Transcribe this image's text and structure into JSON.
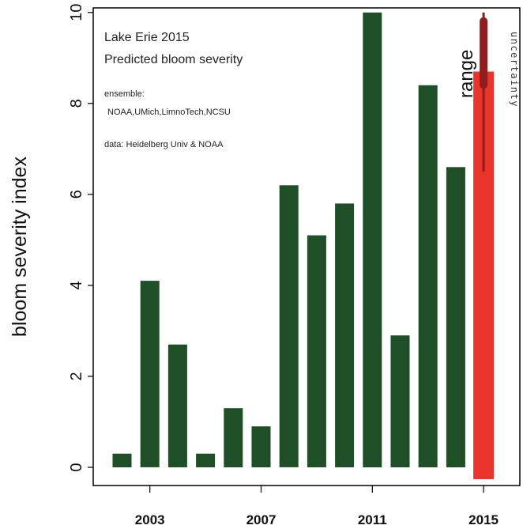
{
  "chart_data": {
    "type": "bar",
    "x": [
      2002,
      2003,
      2004,
      2005,
      2006,
      2007,
      2008,
      2009,
      2010,
      2011,
      2012,
      2013,
      2014,
      2015
    ],
    "values": [
      0.3,
      4.1,
      2.7,
      0.3,
      1.3,
      0.9,
      6.2,
      5.1,
      5.8,
      10.0,
      2.9,
      8.4,
      6.6,
      8.7
    ],
    "ylabel": "bloom severity index",
    "xlabel": "",
    "ylim": [
      -0.4,
      10.1
    ],
    "yticks": [
      0,
      2,
      4,
      6,
      8,
      10
    ],
    "ytick_labels": [
      "0",
      "2",
      "4",
      "6",
      "8",
      "10"
    ],
    "xticks": [
      2003,
      2007,
      2011,
      2015
    ],
    "xtick_labels": [
      "2003",
      "2007",
      "2011",
      "2015"
    ],
    "highlight_year": 2015,
    "range": {
      "year": 2015,
      "low": 6.5,
      "high": 10.0
    },
    "colors": {
      "historical": "#1e4f26",
      "prediction": "#e8342b",
      "range": "#8f1d1d"
    },
    "annotations": {
      "title_line1": "Lake Erie 2015",
      "title_line2": "Predicted bloom severity",
      "ensemble_label": "ensemble:",
      "ensemble_members": "NOAA,UMich,LimnoTech,NCSU",
      "data_source": "data: Heidelberg Univ & NOAA",
      "range_label": "range",
      "uncertainty_label": "uncertainty"
    },
    "grid": false,
    "legend": "none"
  }
}
